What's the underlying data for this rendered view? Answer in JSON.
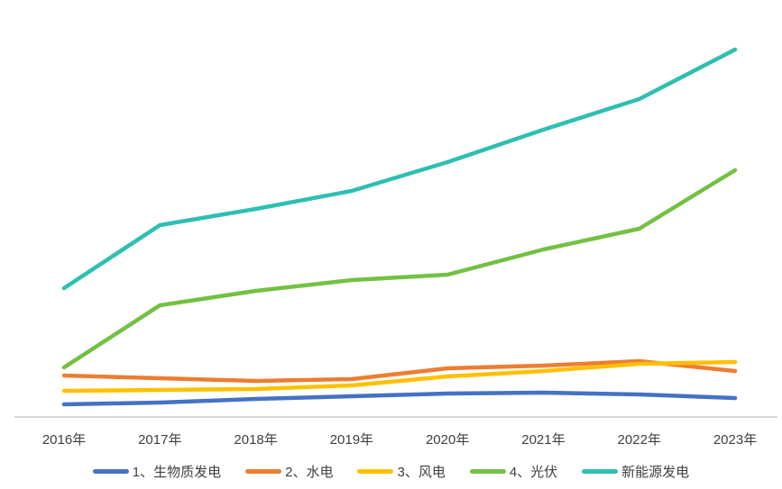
{
  "chart_data": {
    "type": "line",
    "title": "",
    "xlabel": "",
    "ylabel": "",
    "categories": [
      "2016年",
      "2017年",
      "2018年",
      "2019年",
      "2020年",
      "2021年",
      "2022年",
      "2023年"
    ],
    "series": [
      {
        "name": "1、生物质发电",
        "color": "#4472c4",
        "values": [
          15,
          17,
          21,
          24,
          27,
          28,
          26,
          22
        ]
      },
      {
        "name": "2、水电",
        "color": "#ed7d31",
        "values": [
          47,
          44,
          41,
          43,
          55,
          58,
          63,
          52
        ]
      },
      {
        "name": "3、风电",
        "color": "#ffc000",
        "values": [
          30,
          31,
          32,
          36,
          46,
          52,
          60,
          62
        ]
      },
      {
        "name": "4、光伏",
        "color": "#74c043",
        "values": [
          56,
          125,
          141,
          153,
          159,
          187,
          210,
          275
        ]
      },
      {
        "name": "新能源发电",
        "color": "#2dbfb2",
        "values": [
          144,
          214,
          232,
          252,
          284,
          320,
          354,
          409
        ]
      }
    ],
    "ylim": [
      0,
      450
    ],
    "y_axis_visible": false,
    "gridlines": false,
    "legend_position": "bottom"
  },
  "style_colors": {
    "axis_line": "#d9d9d9",
    "axis_text": "#404040",
    "background": "#ffffff"
  }
}
